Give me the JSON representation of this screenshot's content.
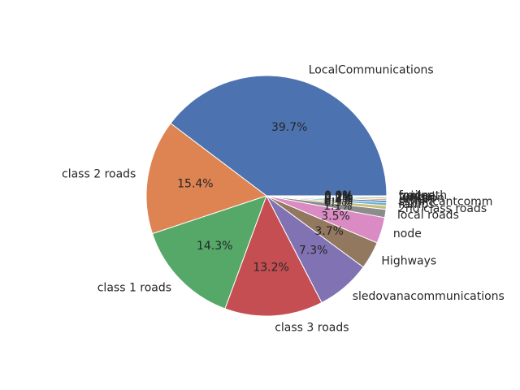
{
  "chart_data": {
    "type": "pie",
    "title": "",
    "start_angle_deg": 0,
    "direction": "counterclockwise",
    "categories": [
      "LocalCommunications",
      "class 2 roads",
      "class 1 roads",
      "class 3 roads",
      "sledovanacommunications",
      "Highways",
      "node",
      "local roads",
      "2nd class roads",
      "ramps",
      "significantcomm",
      "other",
      "junction",
      "tunnel",
      "bridge",
      "footpath",
      "trail"
    ],
    "values": [
      39.7,
      15.4,
      14.3,
      13.2,
      7.3,
      3.7,
      3.5,
      1.1,
      0.5,
      0.4,
      0.3,
      0.2,
      0.2,
      0.1,
      0.1,
      0.0,
      0.0
    ],
    "percent_labels": [
      "39.7%",
      "15.4%",
      "14.3%",
      "13.2%",
      "7.3%",
      "3.7%",
      "3.5%",
      "1.1%",
      "0.5%",
      "0.4%",
      "0.3%",
      "0.2%",
      "0.2%",
      "0.1%",
      "0.1%",
      "0.0%",
      "0.0%"
    ],
    "colors": [
      "#4c72b0",
      "#dd8452",
      "#55a868",
      "#c44e52",
      "#8172b3",
      "#937860",
      "#da8bc3",
      "#8c8c8c",
      "#ccb974",
      "#64b5cd",
      "#4c72b0",
      "#dd8452",
      "#55a868",
      "#c44e52",
      "#8172b3",
      "#937860",
      "#da8bc3"
    ]
  }
}
